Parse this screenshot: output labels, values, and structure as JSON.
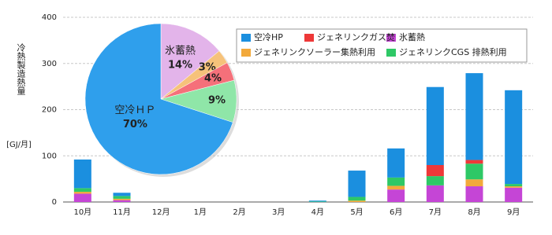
{
  "chart_data": [
    {
      "type": "bar",
      "stacked": true,
      "y_label": "冷熱製造熱量",
      "y_unit": "[GJ/月]",
      "categories": [
        "10月",
        "11月",
        "12月",
        "1月",
        "2月",
        "3月",
        "4月",
        "5月",
        "6月",
        "7月",
        "8月",
        "9月"
      ],
      "series": [
        {
          "name": "氷蓄熱",
          "color": "#c545d6",
          "values": [
            18,
            4,
            0,
            0,
            0,
            0,
            0,
            0,
            27,
            36,
            34,
            31
          ]
        },
        {
          "name": "ジェネリンクソーラー集熱利用",
          "color": "#f2a93b",
          "values": [
            4,
            3,
            0,
            0,
            0,
            0,
            0,
            3,
            8,
            0,
            15,
            3
          ]
        },
        {
          "name": "ジェネリンクCGS 排熱利用",
          "color": "#2ec866",
          "values": [
            8,
            6,
            0,
            0,
            0,
            0,
            1,
            8,
            18,
            20,
            34,
            5
          ]
        },
        {
          "name": "ジェネリンクガス焚",
          "color": "#ee3838",
          "values": [
            0,
            0,
            0,
            0,
            0,
            0,
            0,
            0,
            0,
            24,
            8,
            0
          ]
        },
        {
          "name": "空冷HP",
          "color": "#1b8fdf",
          "values": [
            62,
            7,
            0,
            0,
            0,
            0,
            2,
            57,
            63,
            169,
            188,
            203
          ]
        }
      ],
      "ylim": [
        0,
        400
      ],
      "yticks": [
        0,
        100,
        200,
        300,
        400
      ],
      "grid": true
    },
    {
      "type": "pie",
      "categories": [
        "氷蓄熱",
        null,
        null,
        null,
        "空冷ＨＰ"
      ],
      "values": [
        14,
        3,
        4,
        9,
        70
      ],
      "value_labels": [
        "14%",
        "3%",
        "4%",
        "9%",
        "70%"
      ],
      "colors": [
        "#e3b4ea",
        "#f6c27a",
        "#f5707a",
        "#8fe6a8",
        "#2f9fec"
      ]
    }
  ]
}
